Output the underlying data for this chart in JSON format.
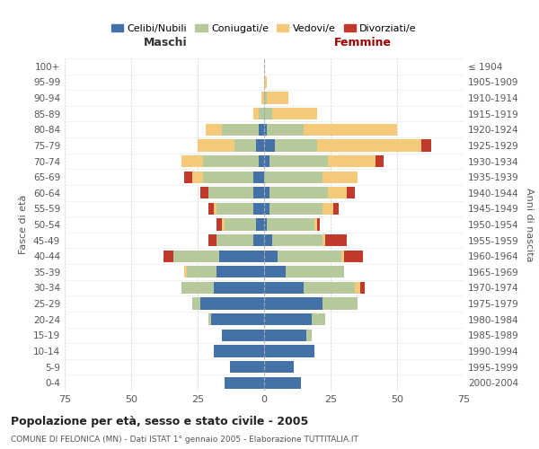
{
  "age_groups_bottom_to_top": [
    "0-4",
    "5-9",
    "10-14",
    "15-19",
    "20-24",
    "25-29",
    "30-34",
    "35-39",
    "40-44",
    "45-49",
    "50-54",
    "55-59",
    "60-64",
    "65-69",
    "70-74",
    "75-79",
    "80-84",
    "85-89",
    "90-94",
    "95-99",
    "100+"
  ],
  "birth_years_bottom_to_top": [
    "2000-2004",
    "1995-1999",
    "1990-1994",
    "1985-1989",
    "1980-1984",
    "1975-1979",
    "1970-1974",
    "1965-1969",
    "1960-1964",
    "1955-1959",
    "1950-1954",
    "1945-1949",
    "1940-1944",
    "1935-1939",
    "1930-1934",
    "1925-1929",
    "1920-1924",
    "1915-1919",
    "1910-1914",
    "1905-1909",
    "≤ 1904"
  ],
  "colors": {
    "celibi": "#4472a8",
    "coniugati": "#b5c99a",
    "vedovi": "#f5c97a",
    "divorziati": "#c0392b"
  },
  "maschi": {
    "celibi": [
      15,
      13,
      19,
      16,
      20,
      24,
      19,
      18,
      17,
      4,
      3,
      4,
      4,
      4,
      2,
      3,
      2,
      0,
      0,
      0,
      0
    ],
    "coniugati": [
      0,
      0,
      0,
      0,
      1,
      3,
      12,
      11,
      17,
      14,
      12,
      14,
      17,
      19,
      21,
      8,
      14,
      2,
      0,
      0,
      0
    ],
    "vedovi": [
      0,
      0,
      0,
      0,
      0,
      0,
      0,
      1,
      0,
      0,
      1,
      1,
      0,
      4,
      8,
      14,
      6,
      2,
      1,
      0,
      0
    ],
    "divorziati": [
      0,
      0,
      0,
      0,
      0,
      0,
      0,
      0,
      4,
      3,
      2,
      2,
      3,
      3,
      0,
      0,
      0,
      0,
      0,
      0,
      0
    ]
  },
  "femmine": {
    "celibi": [
      14,
      11,
      19,
      16,
      18,
      22,
      15,
      8,
      5,
      3,
      1,
      2,
      2,
      0,
      2,
      4,
      1,
      0,
      0,
      0,
      0
    ],
    "coniugati": [
      0,
      0,
      0,
      2,
      5,
      13,
      19,
      22,
      24,
      19,
      18,
      20,
      22,
      22,
      22,
      16,
      14,
      3,
      1,
      0,
      0
    ],
    "vedovi": [
      0,
      0,
      0,
      0,
      0,
      0,
      2,
      0,
      1,
      1,
      1,
      4,
      7,
      13,
      18,
      39,
      35,
      17,
      8,
      1,
      0
    ],
    "divorziati": [
      0,
      0,
      0,
      0,
      0,
      0,
      2,
      0,
      7,
      8,
      1,
      2,
      3,
      0,
      3,
      4,
      0,
      0,
      0,
      0,
      0
    ]
  },
  "title": "Popolazione per età, sesso e stato civile - 2005",
  "subtitle": "COMUNE DI FELONICA (MN) - Dati ISTAT 1° gennaio 2005 - Elaborazione TUTTITALIA.IT",
  "label_maschi": "Maschi",
  "label_femmine": "Femmine",
  "ylabel_left": "Fasce di età",
  "ylabel_right": "Anni di nascita",
  "xlim": 75,
  "bg_color": "#ffffff",
  "grid_color": "#d0d0d0",
  "legend_labels": [
    "Celibi/Nubili",
    "Coniugati/e",
    "Vedovi/e",
    "Divorziati/e"
  ],
  "maschi_color": "#333333",
  "femmine_color": "#990000"
}
